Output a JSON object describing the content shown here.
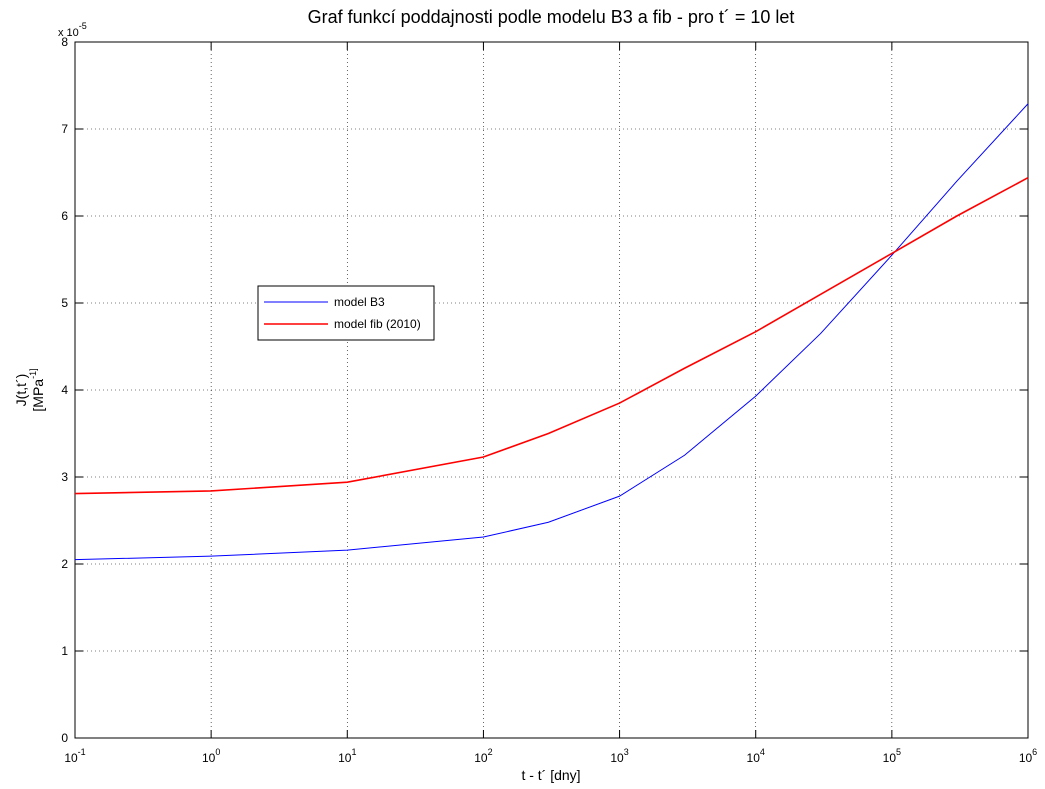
{
  "chart_data": {
    "type": "line",
    "title": "Graf funkcí poddajnosti podle modelu B3 a fib - pro t´ = 10 let",
    "xlabel": "t - t´ [dny]",
    "ylabel": [
      "J(t,t´)",
      "[MPa^-1]"
    ],
    "y_multiplier": "x 10^-5",
    "xscale": "log",
    "x": [
      0.1,
      1,
      10,
      100,
      300,
      1000,
      3000,
      10000,
      30000,
      100000,
      300000,
      1000000
    ],
    "series": [
      {
        "name": "model B3",
        "color": "#0000ff",
        "values": [
          2.05,
          2.09,
          2.16,
          2.31,
          2.48,
          2.78,
          3.25,
          3.93,
          4.65,
          5.55,
          6.4,
          7.29
        ]
      },
      {
        "name": "model fib (2010)",
        "color": "#ff0000",
        "values": [
          2.81,
          2.84,
          2.94,
          3.23,
          3.5,
          3.85,
          4.25,
          4.67,
          5.1,
          5.57,
          6.0,
          6.44
        ]
      }
    ],
    "xlim": [
      0.1,
      1000000
    ],
    "xticks": [
      {
        "value": 0.1,
        "label": "10^-1"
      },
      {
        "value": 1,
        "label": "10^0"
      },
      {
        "value": 10,
        "label": "10^1"
      },
      {
        "value": 100,
        "label": "10^2"
      },
      {
        "value": 1000,
        "label": "10^3"
      },
      {
        "value": 10000,
        "label": "10^4"
      },
      {
        "value": 100000,
        "label": "10^5"
      },
      {
        "value": 1000000,
        "label": "10^6"
      }
    ],
    "ylim": [
      0,
      8
    ],
    "yticks": [
      0,
      1,
      2,
      3,
      4,
      5,
      6,
      7,
      8
    ],
    "grid": true
  }
}
